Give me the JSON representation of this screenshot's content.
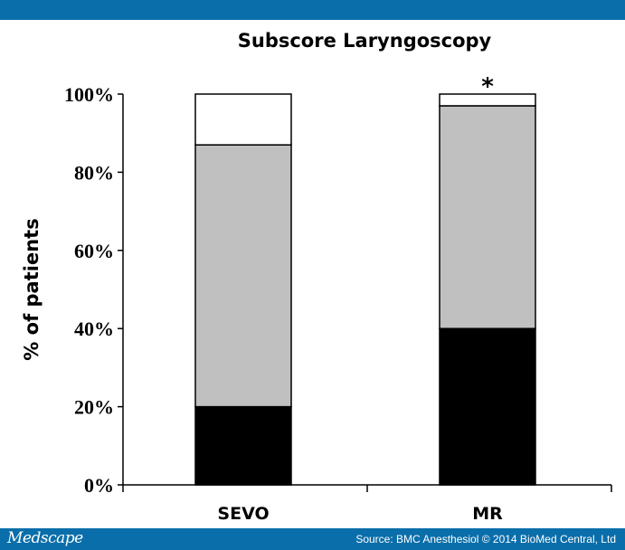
{
  "colors": {
    "frame": "#0a6eaa",
    "segment_black": "#000000",
    "segment_gray": "#c0c0c0",
    "segment_white": "#ffffff"
  },
  "footer": {
    "brand": "Medscape",
    "source": "Source: BMC Anesthesiol © 2014 BioMed Central, Ltd"
  },
  "chart_data": {
    "type": "bar",
    "stacked": true,
    "title": "Subscore Laryngoscopy",
    "xlabel": "",
    "ylabel": "% of patients",
    "ylim": [
      0,
      100
    ],
    "yticks": [
      0,
      20,
      40,
      60,
      80,
      100
    ],
    "ytick_labels": [
      "0%",
      "20%",
      "40%",
      "60%",
      "80%",
      "100%"
    ],
    "categories": [
      "SEVO",
      "MR"
    ],
    "series": [
      {
        "name": "black",
        "color": "#000000",
        "values": [
          20,
          40
        ]
      },
      {
        "name": "gray",
        "color": "#c0c0c0",
        "values": [
          67,
          57
        ]
      },
      {
        "name": "white",
        "color": "#ffffff",
        "values": [
          13,
          3
        ]
      }
    ],
    "annotations": [
      {
        "category": "MR",
        "text": "*"
      }
    ]
  }
}
